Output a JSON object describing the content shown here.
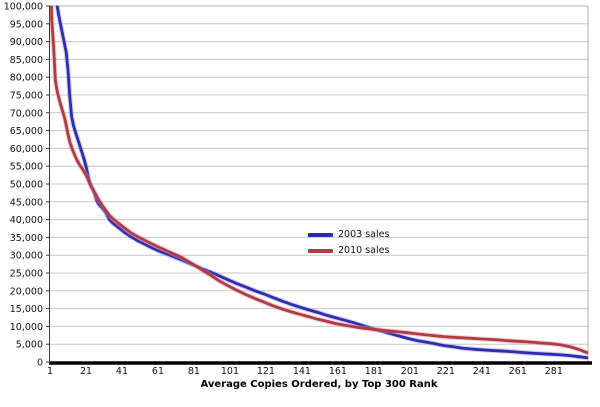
{
  "chart_data": {
    "type": "line",
    "title": "",
    "xlabel": "Average Copies Ordered, by Top 300 Rank",
    "ylabel": "",
    "x_range": [
      1,
      300
    ],
    "ylim": [
      0,
      100000
    ],
    "y_tick_step": 5000,
    "y_tick_labels": [
      "0",
      "5,000",
      "10,000",
      "15,000",
      "20,000",
      "25,000",
      "30,000",
      "35,000",
      "40,000",
      "45,000",
      "50,000",
      "55,000",
      "60,000",
      "65,000",
      "70,000",
      "75,000",
      "80,000",
      "85,000",
      "90,000",
      "95,000",
      "100,000"
    ],
    "x_ticks": [
      1,
      21,
      41,
      61,
      81,
      101,
      121,
      141,
      161,
      181,
      201,
      221,
      241,
      261,
      281
    ],
    "grid": "horizontal-only",
    "legend_position": "center-right",
    "colors": {
      "grid": "#c9c9c9",
      "plot_border": "#b3b3b3",
      "axis": "#3a3a3a",
      "zero_line": "#000000",
      "text": "#111111"
    },
    "series": [
      {
        "name": "2003 sales",
        "color": "#2f2bb3",
        "halo": "#9a97dd",
        "points": [
          [
            1,
            130000
          ],
          [
            3,
            113000
          ],
          [
            5,
            100000
          ],
          [
            6,
            97000
          ],
          [
            7,
            94500
          ],
          [
            8,
            92000
          ],
          [
            9,
            89500
          ],
          [
            10,
            87000
          ],
          [
            11,
            82000
          ],
          [
            12,
            74500
          ],
          [
            13,
            69000
          ],
          [
            14,
            66500
          ],
          [
            15,
            64800
          ],
          [
            16,
            63200
          ],
          [
            17,
            61700
          ],
          [
            18,
            60000
          ],
          [
            19,
            58500
          ],
          [
            20,
            56800
          ],
          [
            21,
            55000
          ],
          [
            22,
            52600
          ],
          [
            23,
            50500
          ],
          [
            24,
            49300
          ],
          [
            25,
            48300
          ],
          [
            26,
            47000
          ],
          [
            27,
            45300
          ],
          [
            28,
            44400
          ],
          [
            29,
            43800
          ],
          [
            30,
            43300
          ],
          [
            32,
            42000
          ],
          [
            34,
            40000
          ],
          [
            36,
            39000
          ],
          [
            38,
            38200
          ],
          [
            40,
            37400
          ],
          [
            43,
            36200
          ],
          [
            46,
            35200
          ],
          [
            50,
            34000
          ],
          [
            54,
            33000
          ],
          [
            58,
            32000
          ],
          [
            62,
            31100
          ],
          [
            66,
            30300
          ],
          [
            70,
            29500
          ],
          [
            74,
            28700
          ],
          [
            78,
            27800
          ],
          [
            82,
            27000
          ],
          [
            86,
            26100
          ],
          [
            90,
            25300
          ],
          [
            95,
            24200
          ],
          [
            100,
            23100
          ],
          [
            105,
            22000
          ],
          [
            110,
            21000
          ],
          [
            115,
            20000
          ],
          [
            120,
            19100
          ],
          [
            125,
            18100
          ],
          [
            130,
            17100
          ],
          [
            135,
            16200
          ],
          [
            140,
            15400
          ],
          [
            145,
            14600
          ],
          [
            150,
            13900
          ],
          [
            155,
            13100
          ],
          [
            160,
            12400
          ],
          [
            165,
            11700
          ],
          [
            170,
            11000
          ],
          [
            175,
            10200
          ],
          [
            180,
            9400
          ],
          [
            185,
            8700
          ],
          [
            190,
            8000
          ],
          [
            195,
            7300
          ],
          [
            200,
            6600
          ],
          [
            205,
            6000
          ],
          [
            210,
            5600
          ],
          [
            215,
            5100
          ],
          [
            220,
            4600
          ],
          [
            225,
            4300
          ],
          [
            230,
            3900
          ],
          [
            235,
            3650
          ],
          [
            240,
            3450
          ],
          [
            245,
            3300
          ],
          [
            250,
            3150
          ],
          [
            255,
            3000
          ],
          [
            260,
            2800
          ],
          [
            265,
            2600
          ],
          [
            270,
            2450
          ],
          [
            275,
            2300
          ],
          [
            280,
            2150
          ],
          [
            285,
            2000
          ],
          [
            290,
            1800
          ],
          [
            295,
            1500
          ],
          [
            300,
            1150
          ]
        ]
      },
      {
        "name": "2010 sales",
        "color": "#b23a44",
        "halo": "#dd9aa0",
        "points": [
          [
            1,
            115000
          ],
          [
            2,
            96000
          ],
          [
            3,
            88500
          ],
          [
            4,
            79000
          ],
          [
            5,
            76000
          ],
          [
            6,
            74000
          ],
          [
            7,
            72200
          ],
          [
            8,
            70500
          ],
          [
            9,
            68800
          ],
          [
            10,
            66500
          ],
          [
            11,
            64000
          ],
          [
            12,
            61800
          ],
          [
            13,
            60300
          ],
          [
            14,
            59000
          ],
          [
            15,
            57800
          ],
          [
            16,
            56700
          ],
          [
            17,
            55800
          ],
          [
            18,
            55000
          ],
          [
            19,
            54200
          ],
          [
            20,
            53400
          ],
          [
            21,
            52500
          ],
          [
            22,
            51500
          ],
          [
            23,
            50300
          ],
          [
            24,
            49200
          ],
          [
            25,
            48300
          ],
          [
            26,
            47400
          ],
          [
            27,
            46500
          ],
          [
            28,
            45600
          ],
          [
            29,
            44800
          ],
          [
            30,
            44000
          ],
          [
            32,
            42600
          ],
          [
            34,
            41200
          ],
          [
            36,
            40200
          ],
          [
            38,
            39400
          ],
          [
            40,
            38600
          ],
          [
            43,
            37400
          ],
          [
            46,
            36300
          ],
          [
            50,
            35100
          ],
          [
            54,
            34100
          ],
          [
            58,
            33100
          ],
          [
            62,
            32100
          ],
          [
            66,
            31200
          ],
          [
            70,
            30300
          ],
          [
            74,
            29400
          ],
          [
            78,
            28200
          ],
          [
            82,
            27000
          ],
          [
            86,
            25700
          ],
          [
            90,
            24500
          ],
          [
            95,
            22800
          ],
          [
            100,
            21400
          ],
          [
            105,
            20100
          ],
          [
            110,
            18900
          ],
          [
            115,
            17800
          ],
          [
            120,
            16800
          ],
          [
            125,
            15800
          ],
          [
            130,
            14900
          ],
          [
            135,
            14100
          ],
          [
            140,
            13400
          ],
          [
            145,
            12700
          ],
          [
            150,
            12000
          ],
          [
            155,
            11400
          ],
          [
            160,
            10800
          ],
          [
            165,
            10300
          ],
          [
            170,
            9900
          ],
          [
            175,
            9500
          ],
          [
            180,
            9200
          ],
          [
            185,
            8950
          ],
          [
            190,
            8700
          ],
          [
            195,
            8450
          ],
          [
            200,
            8200
          ],
          [
            205,
            7900
          ],
          [
            210,
            7600
          ],
          [
            215,
            7350
          ],
          [
            220,
            7100
          ],
          [
            225,
            6950
          ],
          [
            230,
            6800
          ],
          [
            235,
            6650
          ],
          [
            240,
            6500
          ],
          [
            245,
            6350
          ],
          [
            250,
            6200
          ],
          [
            255,
            6000
          ],
          [
            260,
            5850
          ],
          [
            265,
            5700
          ],
          [
            270,
            5500
          ],
          [
            275,
            5300
          ],
          [
            280,
            5100
          ],
          [
            285,
            4800
          ],
          [
            290,
            4300
          ],
          [
            295,
            3500
          ],
          [
            300,
            2500
          ]
        ]
      }
    ]
  }
}
